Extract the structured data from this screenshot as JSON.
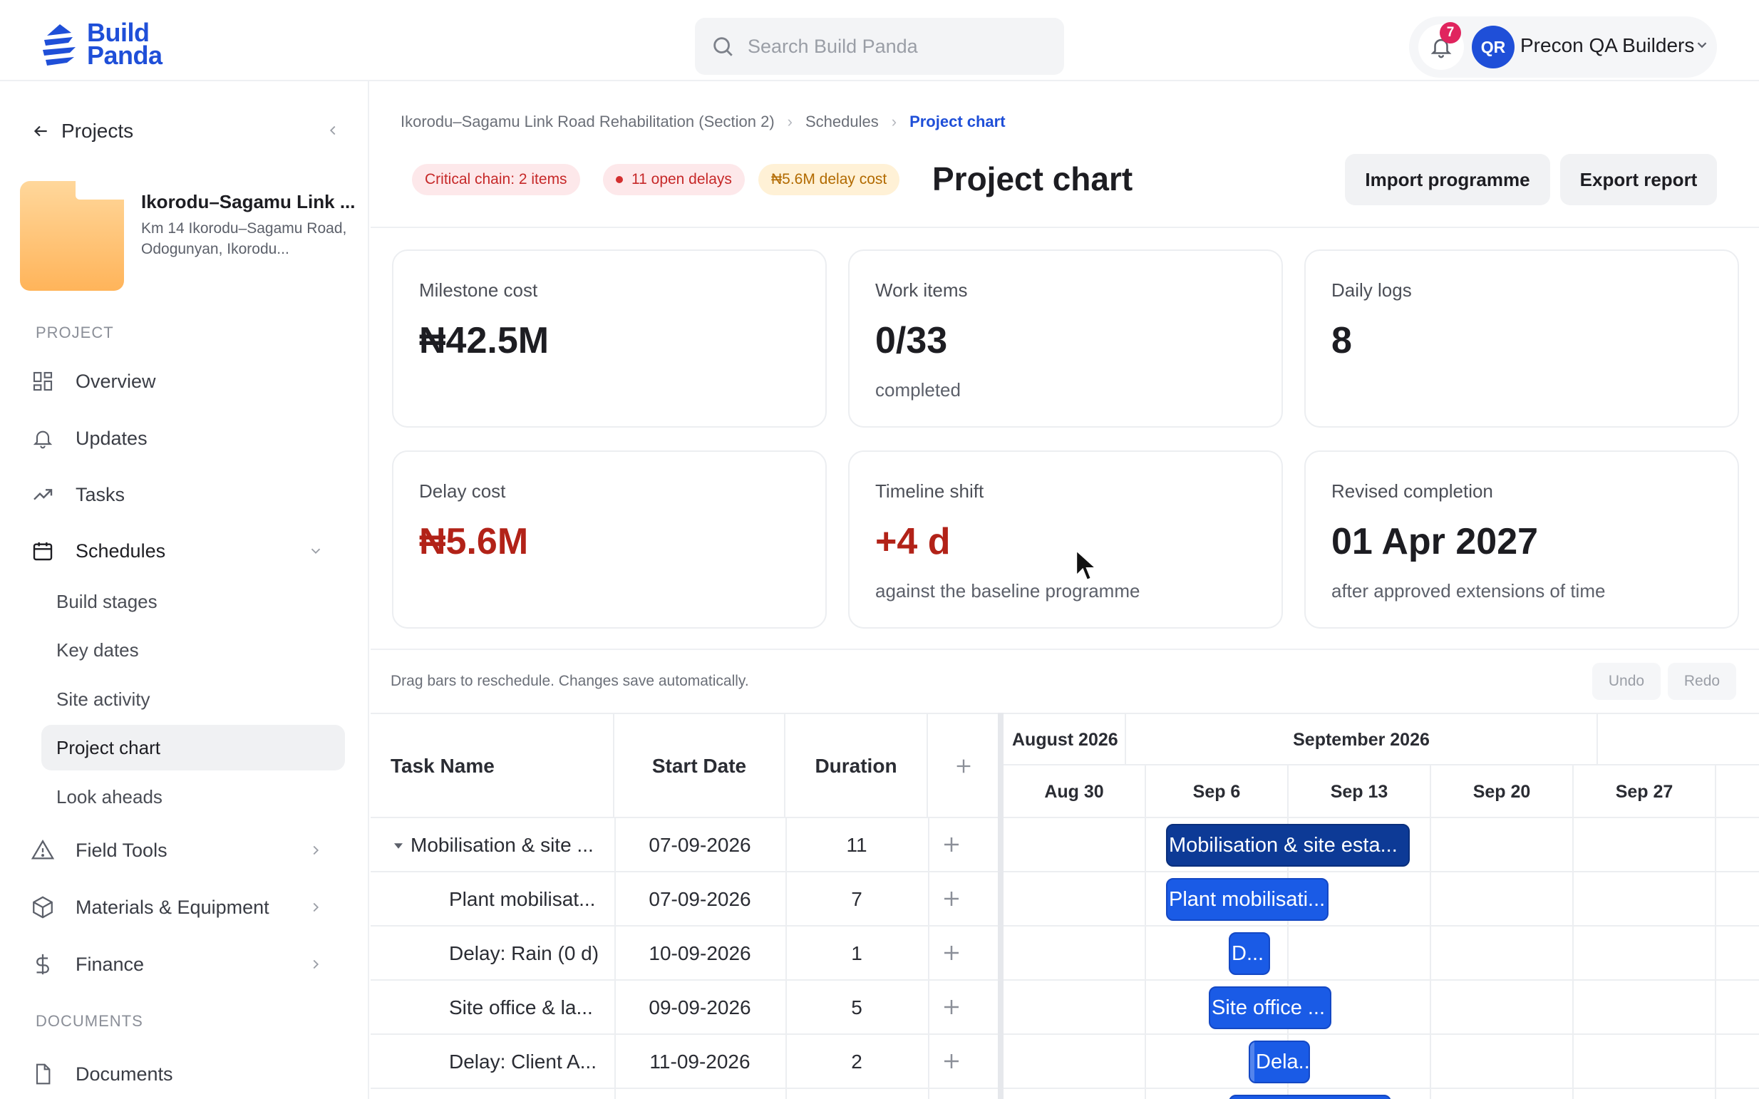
{
  "brand": {
    "name_line1": "Build",
    "name_line2": "Panda"
  },
  "search": {
    "placeholder": "Search Build Panda"
  },
  "account": {
    "notifications": "7",
    "initials": "QR",
    "name": "Precon QA Builders"
  },
  "sidebar": {
    "back_label": "Projects",
    "project": {
      "name": "Ikorodu–Sagamu Link ...",
      "address": "Km 14 Ikorodu–Sagamu Road, Odogunyan, Ikorodu..."
    },
    "section_project": "PROJECT",
    "nav": {
      "overview": "Overview",
      "updates": "Updates",
      "tasks": "Tasks",
      "schedules": "Schedules",
      "field_tools": "Field Tools",
      "materials": "Materials & Equipment",
      "finance": "Finance"
    },
    "schedule_items": [
      "Build stages",
      "Key dates",
      "Site activity",
      "Project chart",
      "Look aheads"
    ],
    "section_documents": "DOCUMENTS",
    "documents_label": "Documents"
  },
  "breadcrumb": {
    "project": "Ikorodu–Sagamu Link Road Rehabilitation (Section 2)",
    "section": "Schedules",
    "current": "Project chart"
  },
  "chips": {
    "critical": "Critical chain: 2 items",
    "delays": "11 open delays",
    "delay_cost": "₦5.6M delay cost"
  },
  "page": {
    "title": "Project chart"
  },
  "actions": {
    "import": "Import programme",
    "export": "Export report"
  },
  "stats": {
    "milestone_cost": {
      "label": "Milestone cost",
      "value": "₦42.5M"
    },
    "work_items": {
      "label": "Work items",
      "value": "0/33",
      "sub": "completed"
    },
    "daily_logs": {
      "label": "Daily logs",
      "value": "8"
    },
    "delay_cost": {
      "label": "Delay cost",
      "value": "₦5.6M"
    },
    "timeline_shift": {
      "label": "Timeline shift",
      "value": "+4 d",
      "sub": "against the baseline programme"
    },
    "revised_completion": {
      "label": "Revised completion",
      "value": "01 Apr 2027",
      "sub": "after approved extensions of time"
    }
  },
  "gantt": {
    "hint": "Drag bars to reschedule. Changes save automatically.",
    "undo": "Undo",
    "redo": "Redo",
    "columns": {
      "task": "Task Name",
      "start": "Start Date",
      "duration": "Duration"
    },
    "months": [
      "August 2026",
      "September 2026"
    ],
    "weeks": [
      "Aug 30",
      "Sep 6",
      "Sep 13",
      "Sep 20",
      "Sep 27"
    ],
    "rows": [
      {
        "name": "Mobilisation & site ...",
        "start": "07-09-2026",
        "duration": "11",
        "bar_label": "Mobilisation & site esta..."
      },
      {
        "name": "Plant mobilisat...",
        "start": "07-09-2026",
        "duration": "7",
        "bar_label": "Plant mobilisati..."
      },
      {
        "name": "Delay: Rain (0 d)",
        "start": "10-09-2026",
        "duration": "1",
        "bar_label": "D..."
      },
      {
        "name": "Site office & la...",
        "start": "09-09-2026",
        "duration": "5",
        "bar_label": "Site office ..."
      },
      {
        "name": "Delay: Client A...",
        "start": "11-09-2026",
        "duration": "2",
        "bar_label": "Dela..."
      }
    ]
  },
  "colors": {
    "brand": "#1f4fd8",
    "summary_bar": "#0d3a96",
    "task_bar": "#1a5be6",
    "delay_red": "#b22218",
    "folder": "#ffb45a"
  }
}
